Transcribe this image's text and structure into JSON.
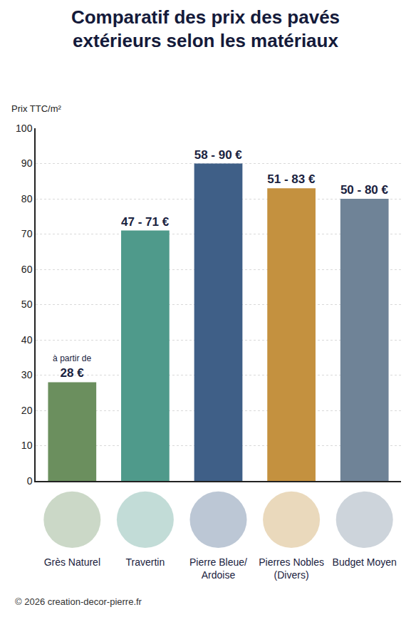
{
  "chart_data": {
    "type": "bar",
    "title": "Comparatif des prix des pavés extérieurs selon les matériaux",
    "ylabel": "Prix TTC/m²",
    "categories": [
      "Grès Naturel",
      "Travertin",
      "Pierre Bleue/ Ardoise",
      "Pierres Nobles (Divers)",
      "Budget Moyen"
    ],
    "values": [
      28,
      71,
      90,
      83,
      80
    ],
    "value_labels": [
      "à partir de 28 €",
      "47 - 71 €",
      "58 - 90 €",
      "51 - 83 €",
      "50 - 80 €"
    ],
    "data_labels": true,
    "colors": [
      "#6b8f5e",
      "#4f9a8b",
      "#3f5f87",
      "#c4913f",
      "#6f8397"
    ],
    "ylim": [
      0,
      100
    ],
    "yticks": [
      0,
      10,
      20,
      30,
      40,
      50,
      60,
      70,
      80,
      90,
      100
    ],
    "grid": true,
    "source": "© 2026 creation-decor-pierre.fr"
  }
}
